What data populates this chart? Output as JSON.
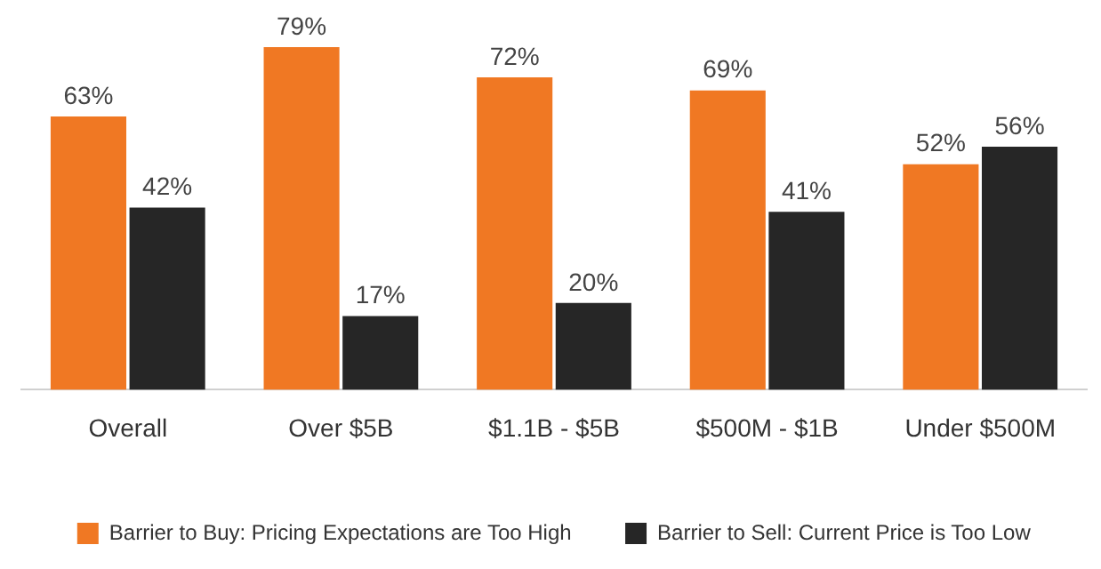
{
  "chart_data": {
    "type": "bar",
    "categories": [
      "Overall",
      "Over $5B",
      "$1.1B - $5B",
      "$500M - $1B",
      "Under $500M"
    ],
    "series": [
      {
        "name": "Barrier to Buy: Pricing Expectations are Too High",
        "color": "#f07823",
        "values": [
          63,
          79,
          72,
          69,
          52
        ],
        "value_labels": [
          "63%",
          "79%",
          "72%",
          "69%",
          "52%"
        ]
      },
      {
        "name": "Barrier to Sell: Current Price is Too Low",
        "color": "#262626",
        "values": [
          42,
          17,
          20,
          41,
          56
        ],
        "value_labels": [
          "42%",
          "17%",
          "20%",
          "41%",
          "56%"
        ]
      }
    ],
    "grid": false,
    "legend": "bottom",
    "tick_labels": "x"
  }
}
